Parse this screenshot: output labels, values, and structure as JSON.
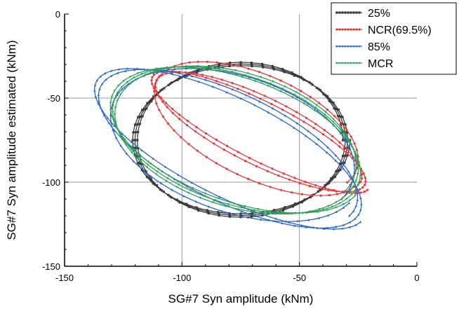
{
  "chart_data": {
    "type": "scatter",
    "title": "",
    "xlabel": "SG#7 Syn amplitude (kNm)",
    "ylabel": "SG#7 Syn amplitude estimated (kNm)",
    "xlim": [
      -150,
      0
    ],
    "ylim": [
      -150,
      0
    ],
    "x_ticks": [
      -150,
      -100,
      -50,
      0
    ],
    "y_ticks": [
      0,
      -50,
      -100,
      -150
    ],
    "grid": true,
    "legend_position": "top-right",
    "series": [
      {
        "name": "25%",
        "color": "#3a3a3a",
        "marker": "square",
        "loops": [
          {
            "cx": -75,
            "cy": -75,
            "rx": 45,
            "ry": 45,
            "rot": 0,
            "turns": 3,
            "drift": 1.5
          }
        ]
      },
      {
        "name": "NCR(69.5%)",
        "color": "#e8383d",
        "marker": "circle",
        "loops": [
          {
            "cx": -67,
            "cy": -70,
            "rx": 55,
            "ry": 17,
            "rot": -37,
            "turns": 2,
            "drift": 2.5
          },
          {
            "cx": -68,
            "cy": -68,
            "rx": 52,
            "ry": 28,
            "rot": -40,
            "turns": 1,
            "drift": 2
          }
        ]
      },
      {
        "name": "85%",
        "color": "#2a66c9",
        "marker": "triangle",
        "loops": [
          {
            "cx": -80,
            "cy": -80,
            "rx": 68,
            "ry": 28,
            "rot": -38,
            "turns": 2,
            "drift": 3
          },
          {
            "cx": -78,
            "cy": -78,
            "rx": 58,
            "ry": 38,
            "rot": -35,
            "turns": 1,
            "drift": 2
          }
        ]
      },
      {
        "name": "MCR",
        "color": "#2ea05a",
        "marker": "triangle-down",
        "loops": [
          {
            "cx": -77,
            "cy": -75,
            "rx": 58,
            "ry": 36,
            "rot": -33,
            "turns": 3,
            "drift": 2.5
          }
        ]
      }
    ]
  }
}
